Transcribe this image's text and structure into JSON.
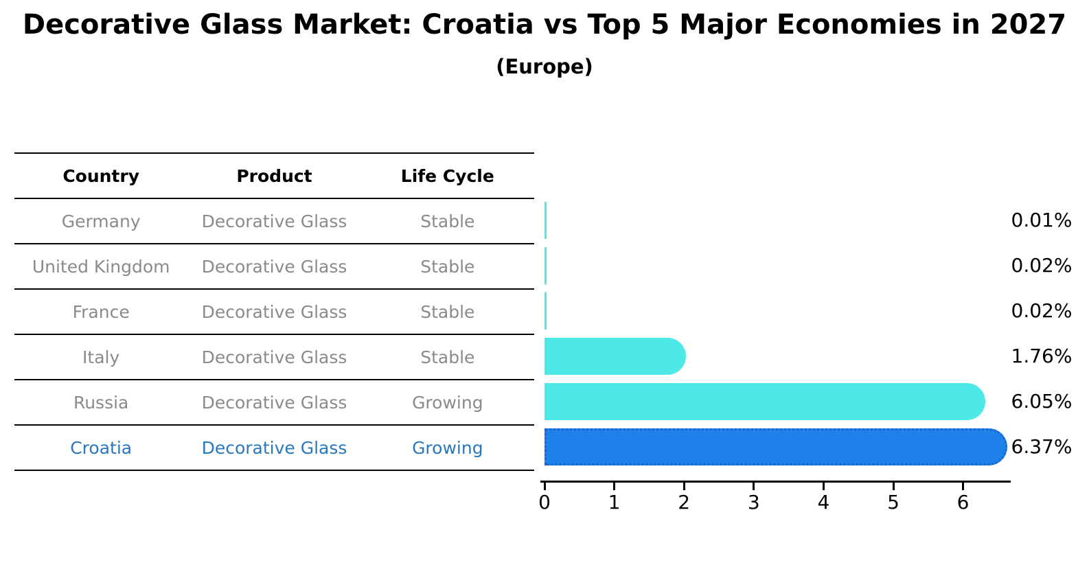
{
  "chart_data": {
    "type": "bar",
    "orientation": "horizontal",
    "title": "Decorative Glass Market: Croatia vs Top 5 Major Economies in 2027",
    "subtitle": "(Europe)",
    "categories": [
      "Germany",
      "United Kingdom",
      "France",
      "Italy",
      "Russia",
      "Croatia"
    ],
    "values": [
      0.01,
      0.02,
      0.02,
      1.76,
      6.05,
      6.37
    ],
    "value_labels": [
      "0.01%",
      "0.02%",
      "0.02%",
      "1.76%",
      "6.05%",
      "6.37%"
    ],
    "xlabel": "",
    "ylabel": "",
    "xticks": [
      "0",
      "1",
      "2",
      "3",
      "4",
      "5",
      "6"
    ],
    "xlim": [
      0,
      6.7
    ],
    "grid": false,
    "legend": false,
    "highlight_index": 5
  },
  "table": {
    "headers": [
      "Country",
      "Product",
      "Life Cycle"
    ],
    "rows": [
      {
        "country": "Germany",
        "product": "Decorative Glass",
        "life_cycle": "Stable",
        "value": 0.01,
        "pct": "0.01%",
        "highlight": false
      },
      {
        "country": "United Kingdom",
        "product": "Decorative Glass",
        "life_cycle": "Stable",
        "value": 0.02,
        "pct": "0.02%",
        "highlight": false
      },
      {
        "country": "France",
        "product": "Decorative Glass",
        "life_cycle": "Stable",
        "value": 0.02,
        "pct": "0.02%",
        "highlight": false
      },
      {
        "country": "Italy",
        "product": "Decorative Glass",
        "life_cycle": "Stable",
        "value": 1.76,
        "pct": "1.76%",
        "highlight": false
      },
      {
        "country": "Russia",
        "product": "Decorative Glass",
        "life_cycle": "Growing",
        "value": 6.05,
        "pct": "6.05%",
        "highlight": false
      },
      {
        "country": "Croatia",
        "product": "Decorative Glass",
        "life_cycle": "Growing",
        "value": 6.37,
        "pct": "6.37%",
        "highlight": true
      }
    ]
  },
  "colors": {
    "bar": "#4de9e9",
    "highlight_bar": "#1e82ea",
    "highlight_bar_border": "#1567d2",
    "row_text": "#8a8a8a",
    "highlight_text": "#2878be",
    "header_text": "#000000",
    "axis": "#000000"
  }
}
